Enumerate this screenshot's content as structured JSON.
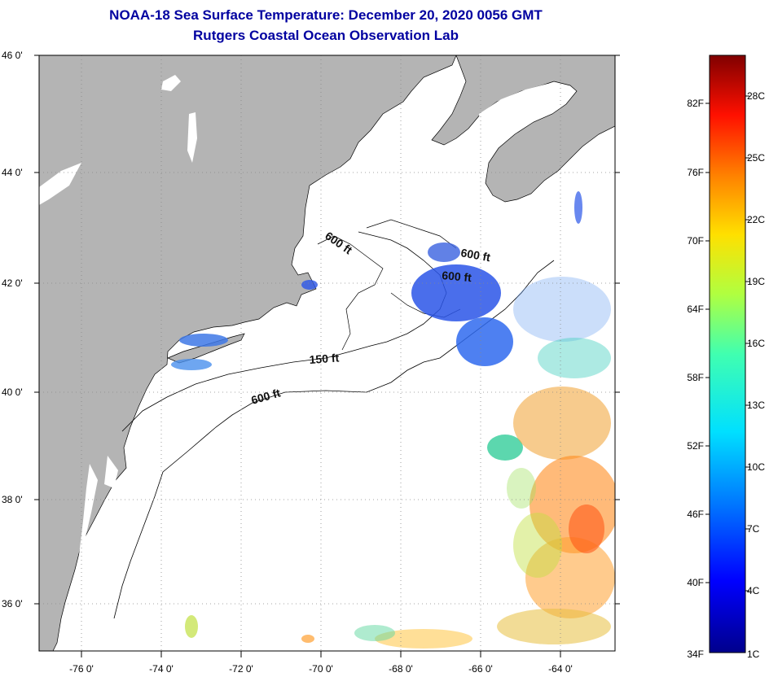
{
  "title": {
    "line1": "NOAA-18 Sea Surface Temperature:  December 20, 2020 0056 GMT",
    "line2": "Rutgers Coastal Ocean Observation Lab"
  },
  "axes": {
    "lat_labels": [
      "46 0'",
      "44 0'",
      "42 0'",
      "40 0'",
      "38 0'",
      "36 0'"
    ],
    "lon_labels": [
      "-76 0'",
      "-74 0'",
      "-72 0'",
      "-70 0'",
      "-68 0'",
      "-66 0'",
      "-64 0'"
    ]
  },
  "isobaths": {
    "l1": "600 ft",
    "l2": "600 ft",
    "l3": "600 ft",
    "l4": "150 ft",
    "l5": "600 ft"
  },
  "colorbar": {
    "fahrenheit": [
      "82F",
      "76F",
      "70F",
      "64F",
      "58F",
      "52F",
      "46F",
      "40F",
      "34F"
    ],
    "celsius": [
      "28C",
      "25C",
      "22C",
      "19C",
      "16C",
      "13C",
      "10C",
      "7C",
      "4C",
      "1C"
    ]
  },
  "colors": {
    "title": "#0000a0",
    "land": "#b4b4b4",
    "ocean": "#ffffff"
  }
}
